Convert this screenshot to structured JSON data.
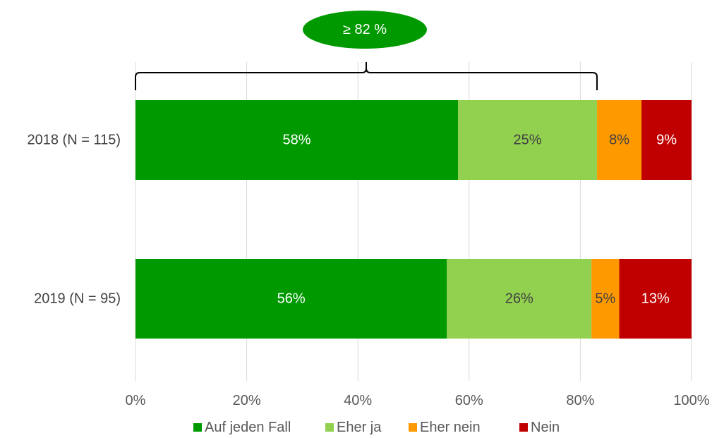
{
  "chart_data": {
    "type": "bar",
    "orientation": "horizontal",
    "stacked": true,
    "categories": [
      "2018 (N = 115)",
      "2019 (N = 95)"
    ],
    "series": [
      {
        "name": "Auf jeden Fall",
        "values": [
          58,
          56
        ],
        "labels": [
          "58%",
          "56%"
        ],
        "color": "#009900",
        "label_color": "#ffffff"
      },
      {
        "name": "Eher ja",
        "values": [
          25,
          26
        ],
        "labels": [
          "25%",
          "26%"
        ],
        "color": "#92d050",
        "label_color": "#404040"
      },
      {
        "name": "Eher nein",
        "values": [
          8,
          5
        ],
        "labels": [
          "8%",
          "5%"
        ],
        "color": "#ff9900",
        "label_color": "#404040"
      },
      {
        "name": "Nein",
        "values": [
          9,
          13
        ],
        "labels": [
          "9%",
          "13%"
        ],
        "color": "#c00000",
        "label_color": "#ffffff"
      }
    ],
    "xlim": [
      0,
      100
    ],
    "xticks": [
      "0%",
      "20%",
      "40%",
      "60%",
      "80%",
      "100%"
    ],
    "grid": true,
    "legend_position": "bottom",
    "title": "",
    "xlabel": "",
    "ylabel": "",
    "annotation": {
      "text": "≥ 82 %",
      "color": "#009900",
      "bracket_from": 0,
      "bracket_to": 83,
      "applies_to": "2018 (N = 115)"
    }
  }
}
